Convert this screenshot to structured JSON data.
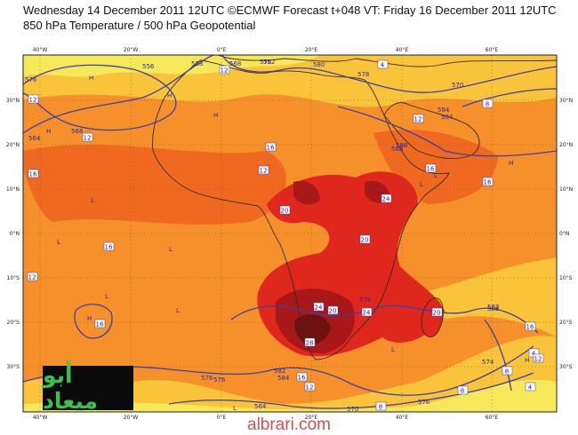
{
  "header": {
    "line1": "Wednesday 14 December 2011 12UTC ©ECMWF Forecast t+048 VT: Friday 16 December 2011 12UTC",
    "line2": "850 hPa Temperature / 500 hPa Geopotential"
  },
  "map": {
    "lon_labels": [
      "40°W",
      "20°W",
      "0°E",
      "20°E",
      "40°E",
      "60°E"
    ],
    "lat_labels": [
      "30°N",
      "20°N",
      "10°N",
      "0°N",
      "10°S",
      "20°S",
      "30°S"
    ],
    "temperature_labels": [
      "12",
      "16",
      "12",
      "12",
      "16",
      "16",
      "20",
      "24",
      "20",
      "24",
      "20",
      "24",
      "28",
      "16",
      "20",
      "12",
      "16",
      "8",
      "4",
      "12",
      "16",
      "12",
      "16",
      "12",
      "8",
      "4",
      "8",
      "4",
      "8",
      "12",
      "16"
    ],
    "geopotential_labels": [
      "556",
      "568",
      "576",
      "580",
      "568",
      "576",
      "564",
      "568",
      "576",
      "584",
      "588",
      "584",
      "576",
      "588",
      "570",
      "582",
      "576",
      "578",
      "562",
      "564",
      "570",
      "576",
      "574",
      "552",
      "584",
      "588"
    ],
    "pressure_marks": [
      "H",
      "L"
    ],
    "colors": {
      "yellow": "#f7e85a",
      "light_orange": "#fac43a",
      "orange": "#f6902a",
      "deep_orange": "#ef6a20",
      "red": "#e0271e",
      "dark_red": "#a81818",
      "maroon": "#6e1210",
      "contour": "#3f3fa8",
      "coastline": "#3b2a1a"
    }
  },
  "logo": {
    "text": "أبو ميعاد"
  },
  "footer": {
    "site": "albrari.com"
  }
}
